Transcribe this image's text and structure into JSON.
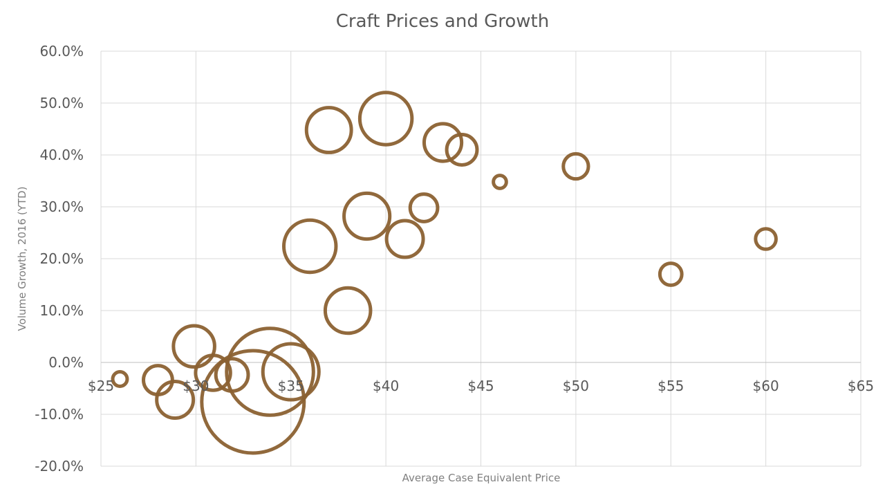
{
  "chart_data": {
    "type": "bubble",
    "title": "Craft Prices and Growth",
    "xlabel": "Average Case Equivalent Price",
    "ylabel": "Volume Growth, 2016 (YTD)",
    "xlim": [
      25,
      65
    ],
    "ylim": [
      -0.2,
      0.6
    ],
    "x_ticks": [
      25,
      30,
      35,
      40,
      45,
      50,
      55,
      60,
      65
    ],
    "x_tick_labels": [
      "$25",
      "$30",
      "$35",
      "$40",
      "$45",
      "$50",
      "$55",
      "$60",
      "$65"
    ],
    "y_ticks": [
      -0.2,
      -0.1,
      0.0,
      0.1,
      0.2,
      0.3,
      0.4,
      0.5,
      0.6
    ],
    "y_tick_labels": [
      "-20.0%",
      "-10.0%",
      "0.0%",
      "10.0%",
      "20.0%",
      "30.0%",
      "40.0%",
      "50.0%",
      "60.0%"
    ],
    "grid": true,
    "color": "#8B6132",
    "points": [
      {
        "x": 26.0,
        "y": -0.032,
        "size": 1.0
      },
      {
        "x": 28.0,
        "y": -0.034,
        "size": 4.0
      },
      {
        "x": 28.9,
        "y": -0.072,
        "size": 6.4
      },
      {
        "x": 29.9,
        "y": 0.031,
        "size": 8.1
      },
      {
        "x": 30.9,
        "y": -0.02,
        "size": 5.8
      },
      {
        "x": 31.9,
        "y": -0.024,
        "size": 5.0
      },
      {
        "x": 33.0,
        "y": -0.076,
        "size": 50.0
      },
      {
        "x": 33.9,
        "y": -0.018,
        "size": 36.0
      },
      {
        "x": 35.0,
        "y": -0.018,
        "size": 15.0
      },
      {
        "x": 36.0,
        "y": 0.224,
        "size": 13.0
      },
      {
        "x": 37.0,
        "y": 0.448,
        "size": 9.6
      },
      {
        "x": 38.0,
        "y": 0.1,
        "size": 9.8
      },
      {
        "x": 39.0,
        "y": 0.282,
        "size": 10.0
      },
      {
        "x": 40.0,
        "y": 0.47,
        "size": 13.0
      },
      {
        "x": 41.0,
        "y": 0.238,
        "size": 6.4
      },
      {
        "x": 42.0,
        "y": 0.298,
        "size": 3.6
      },
      {
        "x": 43.0,
        "y": 0.424,
        "size": 6.7
      },
      {
        "x": 44.0,
        "y": 0.41,
        "size": 4.4
      },
      {
        "x": 46.0,
        "y": 0.348,
        "size": 0.8
      },
      {
        "x": 50.0,
        "y": 0.378,
        "size": 3.0
      },
      {
        "x": 55.0,
        "y": 0.17,
        "size": 2.3
      },
      {
        "x": 60.0,
        "y": 0.238,
        "size": 2.0
      }
    ]
  }
}
